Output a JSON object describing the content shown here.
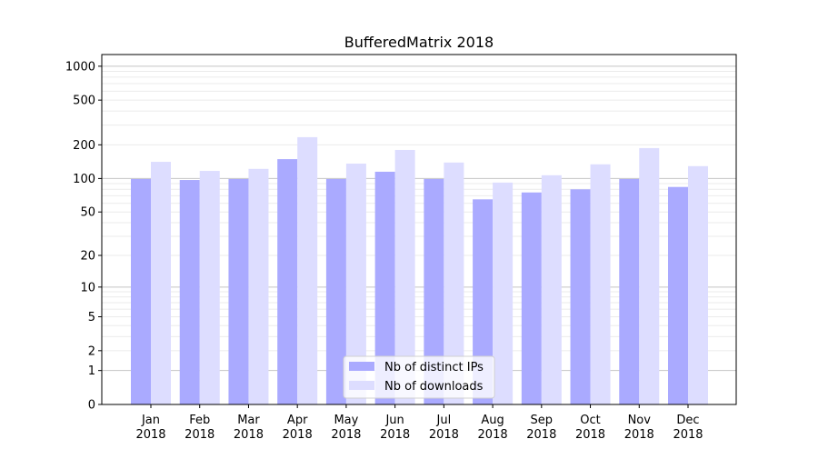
{
  "chart_data": {
    "type": "bar",
    "title": "BufferedMatrix 2018",
    "xlabel": "",
    "ylabel": "",
    "yscale": "symlog (log10(y+1))",
    "ylim": [
      0,
      1270
    ],
    "yticks": [
      0,
      1,
      2,
      5,
      10,
      20,
      50,
      100,
      200,
      500,
      1000
    ],
    "grid": true,
    "legend_position": "bottom-center",
    "categories": [
      "Jan\n2018",
      "Feb\n2018",
      "Mar\n2018",
      "Apr\n2018",
      "May\n2018",
      "Jun\n2018",
      "Jul\n2018",
      "Aug\n2018",
      "Sep\n2018",
      "Oct\n2018",
      "Nov\n2018",
      "Dec\n2018"
    ],
    "series": [
      {
        "name": "Nb of distinct IPs",
        "color": "#aaaaff",
        "values": [
          99,
          97,
          99,
          149,
          99,
          115,
          99,
          65,
          75,
          80,
          99,
          84
        ]
      },
      {
        "name": "Nb of downloads",
        "color": "#ddddff",
        "values": [
          141,
          117,
          122,
          234,
          136,
          180,
          139,
          92,
          107,
          134,
          187,
          129
        ]
      }
    ]
  }
}
